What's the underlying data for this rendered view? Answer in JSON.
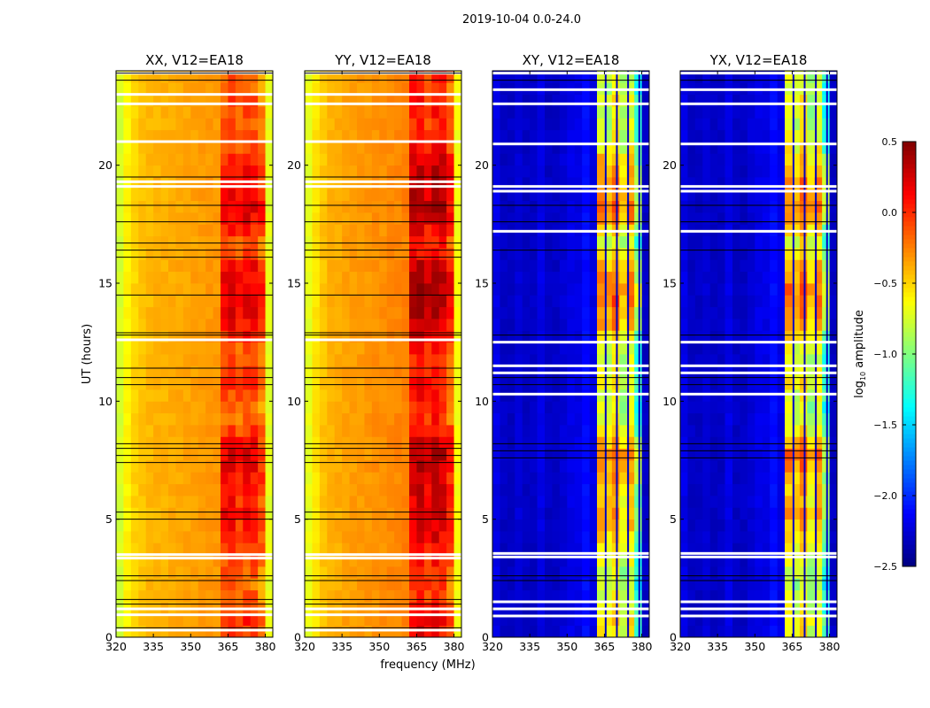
{
  "chart_data": {
    "type": "heatmap",
    "title": "2019-10-04 0.0-24.0",
    "xlabel": "frequency (MHz)",
    "ylabel": "UT (hours)",
    "xlim": [
      320,
      383
    ],
    "ylim": [
      0,
      24
    ],
    "xticks": [
      "320",
      "335",
      "350",
      "365",
      "380"
    ],
    "xtick_values": [
      320,
      335,
      350,
      365,
      380
    ],
    "yticks": [
      "0",
      "5",
      "10",
      "15",
      "20"
    ],
    "ytick_values": [
      0,
      5,
      10,
      15,
      20
    ],
    "freq_bin_width_mhz": 3,
    "time_bin_hours": 0.5,
    "colorbar": {
      "label_main": "log",
      "label_sub": "10",
      "label_rest": " amplitude",
      "range": [
        -2.5,
        0.5
      ],
      "ticks": [
        "0.5",
        "0.0",
        "−0.5",
        "−1.0",
        "−1.5",
        "−2.0",
        "−2.5"
      ],
      "tick_values": [
        0.5,
        0.0,
        -0.5,
        -1.0,
        -1.5,
        -2.0,
        -2.5
      ],
      "colormap": "jet"
    },
    "band_mhz": [
      362,
      380
    ],
    "time_modulation": [
      0.1,
      0.15,
      0.05,
      0.0,
      -0.05,
      0.0,
      0.05,
      0.1,
      0.15,
      0.2,
      0.25,
      0.2,
      0.2,
      0.25,
      0.3,
      0.35,
      0.25,
      0.1,
      0.0,
      0.0,
      0.05,
      0.1,
      0.05,
      0.0,
      0.05,
      0.15,
      0.25,
      0.3,
      0.35,
      0.35,
      0.3,
      0.25,
      0.1,
      0.05,
      0.15,
      0.3,
      0.35,
      0.3,
      0.3,
      0.25,
      0.2,
      0.1,
      0.05,
      0.0,
      0.0,
      0.05,
      0.0,
      0.0
    ],
    "panels": [
      {
        "title": "XX, V12=EA18",
        "freq_profile": [
          -0.75,
          -0.6,
          -0.5,
          -0.45,
          -0.42,
          -0.4,
          -0.4,
          -0.38,
          -0.37,
          -0.36,
          -0.35,
          -0.33,
          -0.32,
          -0.32,
          -0.15,
          -0.12,
          -0.2,
          -0.12,
          -0.15,
          -0.3,
          -0.7
        ],
        "flagged_hours": [
          0.3,
          0.95,
          1.2,
          3.35,
          3.5,
          12.6,
          19.1,
          19.3,
          21.0,
          22.6,
          23.0,
          23.9
        ],
        "black_line_hours": [
          0.4,
          1.4,
          1.6,
          2.4,
          2.6,
          5.0,
          5.3,
          7.4,
          7.7,
          8.0,
          8.2,
          10.7,
          11.0,
          11.4,
          12.8,
          12.9,
          14.5,
          16.1,
          16.4,
          16.7,
          17.6,
          18.3,
          19.5,
          23.6,
          23.9
        ]
      },
      {
        "title": "YY, V12=EA18",
        "freq_profile": [
          -0.7,
          -0.55,
          -0.45,
          -0.4,
          -0.38,
          -0.35,
          -0.34,
          -0.33,
          -0.32,
          -0.3,
          -0.3,
          -0.28,
          -0.27,
          -0.25,
          0.0,
          0.05,
          -0.05,
          0.05,
          0.0,
          -0.2,
          -0.65
        ],
        "flagged_hours": [
          0.3,
          0.95,
          1.2,
          3.35,
          3.5,
          12.6,
          19.1,
          19.3,
          21.0,
          22.6,
          23.0,
          23.9
        ],
        "black_line_hours": [
          0.4,
          1.4,
          1.6,
          2.4,
          2.6,
          5.0,
          5.3,
          7.4,
          7.7,
          8.0,
          8.2,
          10.7,
          11.0,
          11.4,
          12.8,
          12.9,
          14.5,
          16.1,
          16.4,
          16.7,
          17.6,
          18.3,
          19.5,
          23.6,
          23.9
        ]
      },
      {
        "title": "XY, V12=EA18",
        "freq_profile": [
          -2.2,
          -2.3,
          -2.3,
          -2.25,
          -2.3,
          -2.3,
          -2.2,
          -2.3,
          -2.3,
          -2.25,
          -2.2,
          -2.2,
          -2.1,
          -2.2,
          -0.75,
          -0.85,
          -0.65,
          -0.95,
          -0.75,
          -1.3,
          -2.3
        ],
        "flagged_hours": [
          0.9,
          1.2,
          1.5,
          3.4,
          3.55,
          10.3,
          11.2,
          11.5,
          12.5,
          17.2,
          18.9,
          19.1,
          20.9,
          22.6,
          23.2,
          23.9
        ],
        "black_line_hours": [
          2.4,
          2.6,
          7.6,
          7.9,
          8.2,
          10.7,
          11.0,
          12.8,
          16.4,
          17.6,
          18.3,
          23.6
        ]
      },
      {
        "title": "YX, V12=EA18",
        "freq_profile": [
          -2.2,
          -2.3,
          -2.3,
          -2.25,
          -2.3,
          -2.3,
          -2.2,
          -2.3,
          -2.3,
          -2.25,
          -2.2,
          -2.2,
          -2.1,
          -2.2,
          -0.75,
          -0.85,
          -0.65,
          -0.95,
          -0.75,
          -1.3,
          -2.3
        ],
        "flagged_hours": [
          0.9,
          1.2,
          1.5,
          3.4,
          3.55,
          10.3,
          11.2,
          11.5,
          12.5,
          17.2,
          18.9,
          19.1,
          20.9,
          22.6,
          23.2,
          23.9
        ],
        "black_line_hours": [
          2.4,
          2.6,
          7.6,
          7.9,
          8.2,
          10.7,
          11.0,
          12.8,
          16.4,
          17.6,
          18.3,
          23.6
        ]
      }
    ]
  }
}
